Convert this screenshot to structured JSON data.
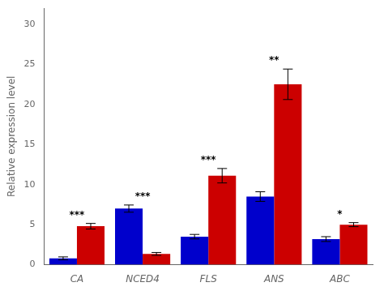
{
  "chart_data": {
    "type": "bar",
    "categories": [
      "CA",
      "NCED4",
      "FLS",
      "ANS",
      "ABC"
    ],
    "series": [
      {
        "color": "#0000cc",
        "values": [
          0.8,
          7.0,
          3.5,
          8.5,
          3.2
        ],
        "errors": [
          0.18,
          0.45,
          0.28,
          0.6,
          0.3
        ]
      },
      {
        "color": "#cc0000",
        "values": [
          4.8,
          1.35,
          11.1,
          22.5,
          5.0
        ],
        "errors": [
          0.35,
          0.18,
          0.9,
          1.9,
          0.25
        ]
      }
    ],
    "ylabel": "Relative expression level",
    "ylim": [
      0,
      32
    ],
    "yticks": [
      0,
      5,
      10,
      15,
      20,
      25,
      30
    ],
    "annotations": [
      "***",
      "***",
      "***",
      "**",
      "*"
    ],
    "grid": false
  }
}
